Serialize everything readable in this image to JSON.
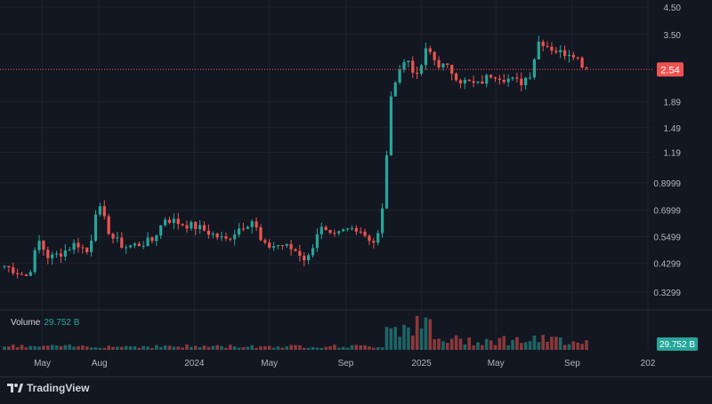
{
  "brand": {
    "name": "TradingView",
    "icon": "tradingview-logo-icon"
  },
  "volume": {
    "label": "Volume",
    "value": "29.752 B",
    "badge": "29.752 B"
  },
  "price_badge": "2.54",
  "colors": {
    "background": "#131722",
    "grid": "#1e222d",
    "up": "#26a69a",
    "down": "#ef5350",
    "last_price_line": "#ef5350",
    "text": "#b2b5be"
  },
  "chart_data": {
    "type": "candlestick",
    "y_scale": "log",
    "ylim": [
      0.29,
      4.5
    ],
    "y_ticks": [
      "4.50",
      "3.50",
      "2.54",
      "1.89",
      "1.49",
      "1.19",
      "0.8999",
      "0.6999",
      "0.5499",
      "0.4299",
      "0.3299"
    ],
    "y_tick_values": [
      4.5,
      3.5,
      2.54,
      1.89,
      1.49,
      1.19,
      0.8999,
      0.6999,
      0.5499,
      0.4299,
      0.3299
    ],
    "x_ticks": [
      "May",
      "Aug",
      "2024",
      "May",
      "Sep",
      "2025",
      "May",
      "Sep",
      "202"
    ],
    "x_tick_dates": [
      "2023-05",
      "2023-08",
      "2024-01",
      "2024-05",
      "2024-09",
      "2025-01",
      "2025-05",
      "2025-09",
      "2026-01"
    ],
    "last_price": 2.54,
    "anchors": [
      [
        "2023-03-01",
        0.42
      ],
      [
        "2023-03-20",
        0.4
      ],
      [
        "2023-04-08",
        0.38
      ],
      [
        "2023-04-25",
        0.53
      ],
      [
        "2023-05-12",
        0.45
      ],
      [
        "2023-06-05",
        0.48
      ],
      [
        "2023-06-25",
        0.52
      ],
      [
        "2023-07-15",
        0.47
      ],
      [
        "2023-07-28",
        0.75
      ],
      [
        "2023-08-20",
        0.55
      ],
      [
        "2023-09-10",
        0.5
      ],
      [
        "2023-10-01",
        0.51
      ],
      [
        "2023-10-25",
        0.53
      ],
      [
        "2023-11-15",
        0.65
      ],
      [
        "2023-12-10",
        0.62
      ],
      [
        "2024-01-05",
        0.6
      ],
      [
        "2024-01-25",
        0.57
      ],
      [
        "2024-02-20",
        0.53
      ],
      [
        "2024-03-15",
        0.6
      ],
      [
        "2024-04-05",
        0.64
      ],
      [
        "2024-04-20",
        0.5
      ],
      [
        "2024-05-20",
        0.51
      ],
      [
        "2024-06-15",
        0.48
      ],
      [
        "2024-07-01",
        0.44
      ],
      [
        "2024-07-20",
        0.6
      ],
      [
        "2024-08-10",
        0.54
      ],
      [
        "2024-08-30",
        0.58
      ],
      [
        "2024-09-20",
        0.6
      ],
      [
        "2024-10-05",
        0.55
      ],
      [
        "2024-10-18",
        0.52
      ],
      [
        "2024-10-28",
        0.6
      ],
      [
        "2024-11-05",
        1.1
      ],
      [
        "2024-11-15",
        2.2
      ],
      [
        "2024-11-28",
        2.6
      ],
      [
        "2024-12-10",
        2.8
      ],
      [
        "2024-12-25",
        2.35
      ],
      [
        "2025-01-10",
        3.1
      ],
      [
        "2025-01-25",
        2.7
      ],
      [
        "2025-02-15",
        2.55
      ],
      [
        "2025-03-05",
        2.3
      ],
      [
        "2025-04-01",
        2.2
      ],
      [
        "2025-04-25",
        2.45
      ],
      [
        "2025-05-15",
        2.35
      ],
      [
        "2025-06-10",
        2.25
      ],
      [
        "2025-06-25",
        2.45
      ],
      [
        "2025-07-10",
        3.35
      ],
      [
        "2025-07-28",
        3.1
      ],
      [
        "2025-08-15",
        2.95
      ],
      [
        "2025-09-01",
        3.0
      ],
      [
        "2025-09-15",
        2.7
      ],
      [
        "2025-09-28",
        2.54
      ]
    ],
    "volume_note": "volume bars below price; spike Nov 2024 – Jan 2025"
  }
}
